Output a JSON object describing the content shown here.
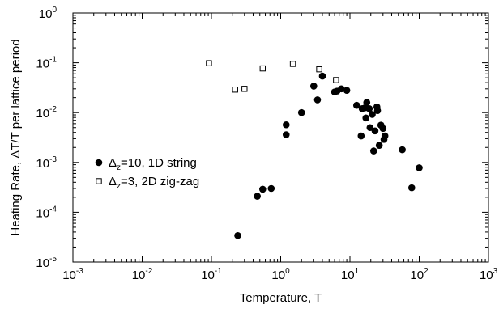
{
  "chart_data": {
    "type": "scatter",
    "title": "",
    "xlabel": "Temperature, T",
    "ylabel": "Heating Rate, ΔT/T per lattice period",
    "xscale": "log",
    "yscale": "log",
    "xlim": [
      0.001,
      1000
    ],
    "ylim": [
      1e-05,
      1
    ],
    "x_ticks": [
      {
        "base": "10",
        "exp": "-3"
      },
      {
        "base": "10",
        "exp": "-2"
      },
      {
        "base": "10",
        "exp": "-1"
      },
      {
        "base": "10",
        "exp": "0"
      },
      {
        "base": "10",
        "exp": "1"
      },
      {
        "base": "10",
        "exp": "2"
      },
      {
        "base": "10",
        "exp": "3"
      }
    ],
    "y_ticks": [
      {
        "base": "10",
        "exp": "-5"
      },
      {
        "base": "10",
        "exp": "-4"
      },
      {
        "base": "10",
        "exp": "-3"
      },
      {
        "base": "10",
        "exp": "-2"
      },
      {
        "base": "10",
        "exp": "-1"
      },
      {
        "base": "10",
        "exp": "0"
      }
    ],
    "grid": false,
    "legend_position": "center-left",
    "series": [
      {
        "name_main": "Δ",
        "name_sub": "z",
        "name_rest": "=10, 1D string",
        "marker": "filled-circle",
        "color": "#000000",
        "points": [
          [
            0.24,
            3.4e-05
          ],
          [
            0.46,
            0.00021
          ],
          [
            0.55,
            0.00029
          ],
          [
            0.73,
            0.0003
          ],
          [
            1.2,
            0.0036
          ],
          [
            1.2,
            0.0057
          ],
          [
            2.0,
            0.01
          ],
          [
            3.0,
            0.034
          ],
          [
            3.4,
            0.018
          ],
          [
            4.0,
            0.054
          ],
          [
            6.0,
            0.026
          ],
          [
            6.5,
            0.027
          ],
          [
            7.5,
            0.03
          ],
          [
            9.0,
            0.028
          ],
          [
            12.5,
            0.014
          ],
          [
            14.5,
            0.0034
          ],
          [
            15.0,
            0.012
          ],
          [
            16.5,
            0.0125
          ],
          [
            17.0,
            0.0078
          ],
          [
            17.5,
            0.016
          ],
          [
            19.0,
            0.012
          ],
          [
            19.5,
            0.005
          ],
          [
            21.0,
            0.0092
          ],
          [
            22.0,
            0.0017
          ],
          [
            23.0,
            0.0043
          ],
          [
            24.5,
            0.013
          ],
          [
            25.0,
            0.011
          ],
          [
            26.5,
            0.0022
          ],
          [
            28.0,
            0.0056
          ],
          [
            30.0,
            0.0048
          ],
          [
            31.0,
            0.0029
          ],
          [
            32.0,
            0.0034
          ],
          [
            57.0,
            0.0018
          ],
          [
            78.0,
            0.00031
          ],
          [
            100.0,
            0.00078
          ]
        ]
      },
      {
        "name_main": "Δ",
        "name_sub": "z",
        "name_rest": "=3, 2D zig-zag",
        "marker": "open-square",
        "color": "#000000",
        "points": [
          [
            0.092,
            0.098
          ],
          [
            0.22,
            0.029
          ],
          [
            0.3,
            0.03
          ],
          [
            0.55,
            0.077
          ],
          [
            1.5,
            0.095
          ],
          [
            3.6,
            0.074
          ],
          [
            6.3,
            0.045
          ]
        ]
      }
    ]
  }
}
